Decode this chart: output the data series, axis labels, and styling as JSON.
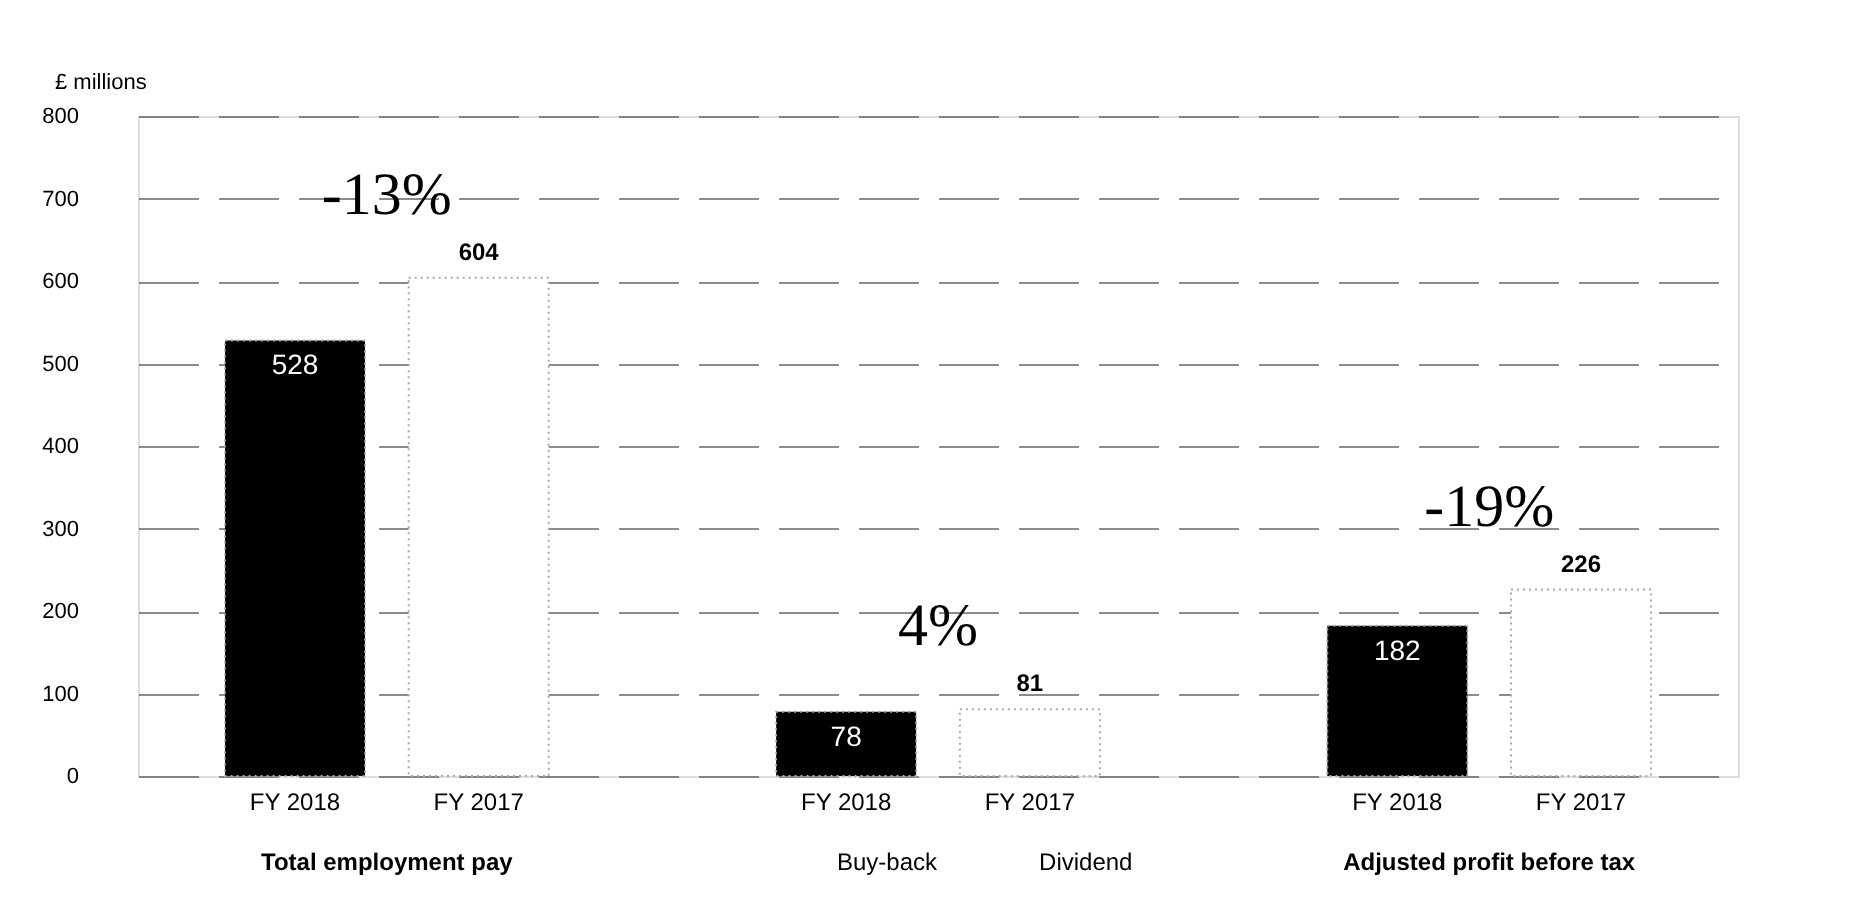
{
  "chart_data": {
    "type": "bar",
    "ylabel": "£ millions",
    "categories": [
      "Total employment pay",
      null,
      "Adjusted profit before tax"
    ],
    "series": [
      {
        "name": "FY 2018",
        "color": "#000000",
        "values": [
          528,
          78,
          182
        ]
      },
      {
        "name": "FY 2017",
        "color": "#ffffff",
        "values": [
          604,
          81,
          226
        ]
      }
    ],
    "data_labels": true,
    "ylim": [
      0,
      800
    ],
    "yticks": [
      0,
      100,
      200,
      300,
      400,
      500,
      600,
      700,
      800
    ],
    "grid": "y",
    "annotations": [
      "-13%",
      "4%",
      "-19%",
      "Buy-back",
      "Dividend"
    ]
  }
}
